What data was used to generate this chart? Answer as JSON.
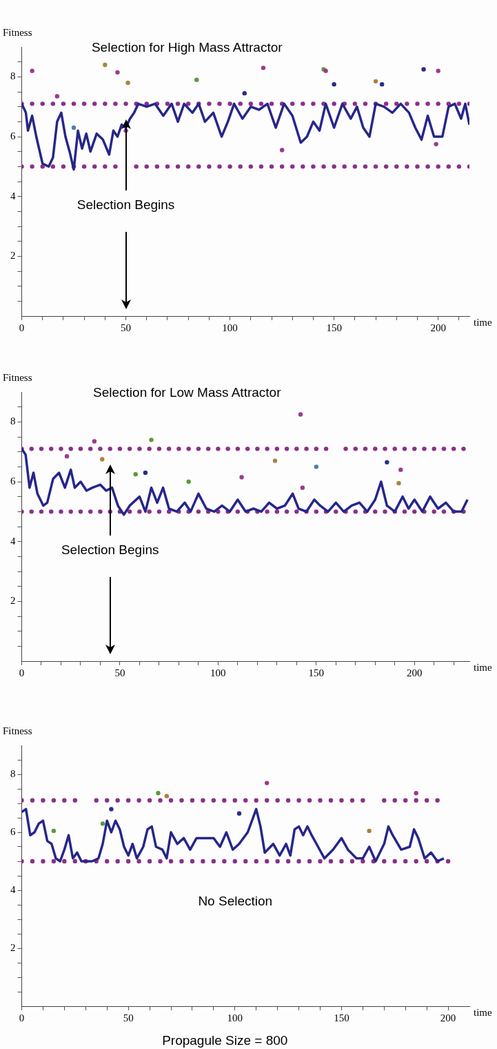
{
  "chart_data": [
    {
      "type": "line",
      "title": "Selection for High Mass Attractor",
      "xlabel": "time",
      "ylabel": "Fitness",
      "xlim": [
        0,
        215
      ],
      "ylim": [
        0,
        9
      ],
      "xticks": [
        0,
        {
          "value": 10,
          "label": null
        },
        {
          "value": 20,
          "label": null
        },
        {
          "value": 30,
          "label": null
        },
        {
          "value": 40,
          "label": null
        },
        50,
        {
          "value": 60,
          "label": null
        },
        {
          "value": 70,
          "label": null
        },
        {
          "value": 80,
          "label": null
        },
        {
          "value": 90,
          "label": null
        },
        100,
        {
          "value": 110,
          "label": null
        },
        {
          "value": 120,
          "label": null
        },
        {
          "value": 130,
          "label": null
        },
        {
          "value": 140,
          "label": null
        },
        150,
        {
          "value": 160,
          "label": null
        },
        {
          "value": 170,
          "label": null
        },
        {
          "value": 180,
          "label": null
        },
        {
          "value": 190,
          "label": null
        },
        200,
        {
          "value": 210,
          "label": null
        }
      ],
      "yticks": [
        {
          "value": 0.5,
          "label": null
        },
        {
          "value": 1,
          "label": null
        },
        {
          "value": 1.5,
          "label": null
        },
        2,
        {
          "value": 2.5,
          "label": null
        },
        {
          "value": 3,
          "label": null
        },
        {
          "value": 3.5,
          "label": null
        },
        4,
        {
          "value": 4.5,
          "label": null
        },
        {
          "value": 5,
          "label": null
        },
        {
          "value": 5.5,
          "label": null
        },
        6,
        {
          "value": 6.5,
          "label": null
        },
        {
          "value": 7,
          "label": null
        },
        {
          "value": 7.5,
          "label": null
        },
        8,
        {
          "value": 8.5,
          "label": null
        }
      ],
      "grid": false,
      "legend": false,
      "ref_lines": [
        {
          "axis": "x",
          "value": 50,
          "label": "Selection Begins"
        }
      ],
      "series": [
        {
          "color": "#26268a",
          "x": [
            0,
            2,
            3,
            5,
            7,
            10,
            13,
            15,
            17,
            19,
            21,
            23,
            25,
            27,
            29,
            31,
            33,
            36,
            39,
            42,
            44,
            46,
            48,
            50,
            52,
            54,
            56,
            60,
            64,
            68,
            72,
            75,
            78,
            82,
            85,
            88,
            92,
            96,
            99,
            102,
            106,
            110,
            114,
            118,
            122,
            126,
            130,
            134,
            137,
            140,
            143,
            146,
            150,
            154,
            158,
            161,
            164,
            167,
            170,
            174,
            178,
            182,
            186,
            189,
            192,
            195,
            198,
            202,
            205,
            208,
            211,
            213,
            215
          ],
          "values": [
            7.1,
            6.8,
            6.2,
            6.7,
            6.0,
            5.1,
            5.0,
            5.3,
            6.5,
            6.8,
            6.0,
            5.5,
            4.9,
            6.2,
            5.6,
            6.1,
            5.5,
            6.1,
            5.9,
            5.4,
            6.2,
            6.0,
            6.4,
            6.3,
            6.6,
            6.8,
            7.1,
            7.0,
            7.1,
            6.7,
            7.1,
            6.5,
            7.1,
            6.8,
            7.1,
            6.5,
            6.8,
            6.0,
            6.5,
            7.1,
            6.6,
            7.0,
            6.9,
            7.1,
            6.3,
            7.1,
            6.7,
            5.8,
            6.0,
            6.5,
            6.2,
            7.1,
            6.3,
            7.1,
            6.6,
            7.0,
            6.3,
            6.0,
            7.1,
            7.0,
            6.8,
            7.1,
            6.8,
            6.3,
            5.9,
            6.7,
            6.0,
            6.0,
            7.0,
            7.1,
            6.6,
            7.1,
            6.4
          ]
        },
        {
          "type": "scatter",
          "marker": "circle",
          "color": "#8b2f8b",
          "x": [
            0,
            5,
            10,
            15,
            20,
            25,
            30,
            35,
            40,
            45,
            50,
            55,
            60,
            65,
            70,
            75,
            80,
            85,
            90,
            95,
            100,
            105,
            110,
            115,
            120,
            125,
            130,
            135,
            140,
            145,
            150,
            155,
            160,
            165,
            170,
            175,
            180,
            185,
            190,
            195,
            200,
            205,
            210,
            215,
            0,
            5,
            10,
            15,
            20,
            25,
            30,
            35,
            40,
            45,
            55,
            60,
            65,
            70,
            75,
            80,
            85,
            90,
            95,
            100,
            105,
            110,
            115,
            120,
            125,
            130,
            135,
            140,
            145,
            150,
            155,
            160,
            165,
            170,
            175,
            180,
            185,
            190,
            195,
            200,
            205,
            210,
            215
          ],
          "values": [
            7.1,
            7.1,
            7.1,
            7.1,
            7.1,
            7.1,
            7.1,
            7.1,
            7.1,
            7.1,
            7.1,
            7.1,
            7.1,
            7.1,
            7.1,
            7.1,
            7.1,
            7.1,
            7.1,
            7.1,
            7.1,
            7.1,
            7.1,
            7.1,
            7.1,
            7.1,
            7.1,
            7.1,
            7.1,
            7.1,
            7.1,
            7.1,
            7.1,
            7.1,
            7.1,
            7.1,
            7.1,
            7.1,
            7.1,
            7.1,
            7.1,
            7.1,
            7.1,
            7.1,
            5,
            5,
            5,
            5,
            5,
            5,
            5,
            5,
            5,
            5,
            5,
            5,
            5,
            5,
            5,
            5,
            5,
            5,
            5,
            5,
            5,
            5,
            5,
            5,
            5,
            5,
            5,
            5,
            5,
            5,
            5,
            5,
            5,
            5,
            5,
            5,
            5,
            5,
            5,
            5,
            5,
            5,
            5
          ]
        },
        {
          "type": "scatter",
          "marker": "circle",
          "colors": [
            "#9c3a8c",
            "#a8823e",
            "#9c3a8c",
            "#a8823e",
            "#5a9a3a",
            "#9c3a8c",
            "#5a9a3a",
            "#9c3a8c",
            "#2b2b8a",
            "#a8823e",
            "#2b2b8a",
            "#2b2b8a",
            "#9c3a8c",
            "#2b2b8a",
            "#9c3a8c",
            "#9c3a8c",
            "#9c3a8c",
            "#4a7fb0",
            "#9c3a8c"
          ],
          "x": [
            5,
            40,
            46,
            51,
            84,
            116,
            145,
            146,
            150,
            170,
            173,
            193,
            200,
            107,
            50,
            125,
            199,
            25,
            17
          ],
          "values": [
            8.2,
            8.4,
            8.15,
            7.8,
            7.9,
            8.3,
            8.25,
            8.2,
            7.75,
            7.85,
            7.75,
            8.25,
            8.2,
            7.45,
            6.2,
            5.55,
            5.75,
            6.3,
            7.35
          ]
        }
      ]
    },
    {
      "type": "line",
      "title": "Selection for Low Mass Attractor",
      "xlabel": "time",
      "ylabel": "Fitness",
      "xlim": [
        0,
        228
      ],
      "ylim": [
        0,
        9
      ],
      "xticks": [
        0,
        {
          "value": 10,
          "label": null
        },
        {
          "value": 20,
          "label": null
        },
        {
          "value": 30,
          "label": null
        },
        {
          "value": 40,
          "label": null
        },
        50,
        {
          "value": 60,
          "label": null
        },
        {
          "value": 70,
          "label": null
        },
        {
          "value": 80,
          "label": null
        },
        {
          "value": 90,
          "label": null
        },
        100,
        {
          "value": 110,
          "label": null
        },
        {
          "value": 120,
          "label": null
        },
        {
          "value": 130,
          "label": null
        },
        {
          "value": 140,
          "label": null
        },
        150,
        {
          "value": 160,
          "label": null
        },
        {
          "value": 170,
          "label": null
        },
        {
          "value": 180,
          "label": null
        },
        {
          "value": 190,
          "label": null
        },
        200,
        {
          "value": 210,
          "label": null
        },
        {
          "value": 220,
          "label": null
        }
      ],
      "yticks": [
        {
          "value": 0.5,
          "label": null
        },
        {
          "value": 1,
          "label": null
        },
        {
          "value": 1.5,
          "label": null
        },
        2,
        {
          "value": 2.5,
          "label": null
        },
        {
          "value": 3,
          "label": null
        },
        {
          "value": 3.5,
          "label": null
        },
        4,
        {
          "value": 4.5,
          "label": null
        },
        {
          "value": 5,
          "label": null
        },
        {
          "value": 5.5,
          "label": null
        },
        6,
        {
          "value": 6.5,
          "label": null
        },
        {
          "value": 7,
          "label": null
        },
        {
          "value": 7.5,
          "label": null
        },
        8,
        {
          "value": 8.5,
          "label": null
        }
      ],
      "grid": false,
      "legend": false,
      "ref_lines": [
        {
          "axis": "x",
          "value": 45,
          "label": "Selection Begins"
        }
      ],
      "series": [
        {
          "color": "#26268a",
          "x": [
            0,
            2,
            4,
            6,
            8,
            11,
            13,
            16,
            19,
            22,
            25,
            27,
            30,
            33,
            36,
            40,
            43,
            46,
            49,
            52,
            55,
            60,
            63,
            66,
            69,
            72,
            75,
            79,
            83,
            86,
            90,
            94,
            98,
            102,
            106,
            110,
            114,
            118,
            122,
            126,
            130,
            134,
            138,
            141,
            145,
            149,
            152,
            156,
            160,
            164,
            168,
            172,
            176,
            180,
            183,
            186,
            190,
            194,
            197,
            200,
            204,
            208,
            212,
            216,
            220,
            224,
            227
          ],
          "values": [
            7.1,
            6.9,
            5.8,
            6.3,
            5.6,
            5.2,
            5.3,
            6.1,
            6.3,
            5.8,
            6.4,
            5.8,
            6.0,
            5.7,
            5.8,
            5.9,
            5.7,
            5.8,
            5.2,
            4.9,
            5.2,
            5.5,
            5.0,
            5.8,
            5.3,
            5.8,
            5.1,
            5.0,
            5.3,
            5.0,
            5.6,
            5.1,
            5.0,
            5.2,
            5.0,
            5.4,
            5.0,
            5.1,
            5.0,
            5.3,
            5.1,
            5.2,
            5.6,
            5.1,
            5.0,
            5.4,
            5.2,
            5.0,
            5.3,
            5.0,
            5.2,
            5.3,
            5.0,
            5.4,
            6.0,
            5.2,
            5.0,
            5.5,
            5.1,
            5.4,
            5.0,
            5.5,
            5.1,
            5.3,
            5.0,
            5.0,
            5.4
          ]
        },
        {
          "type": "scatter",
          "marker": "circle",
          "color": "#8b2f8b",
          "x": [
            0,
            5,
            10,
            15,
            20,
            25,
            30,
            35,
            40,
            45,
            50,
            55,
            60,
            65,
            70,
            75,
            80,
            85,
            90,
            95,
            100,
            105,
            110,
            115,
            120,
            125,
            130,
            135,
            140,
            145,
            150,
            155,
            165,
            170,
            175,
            180,
            185,
            190,
            195,
            200,
            205,
            210,
            215,
            220,
            225,
            0,
            5,
            10,
            15,
            20,
            25,
            30,
            35,
            40,
            45,
            50,
            55,
            60,
            65,
            70,
            75,
            80,
            85,
            90,
            95,
            100,
            105,
            110,
            115,
            120,
            125,
            130,
            135,
            140,
            145,
            150,
            155,
            160,
            165,
            170,
            175,
            180,
            185,
            190,
            195,
            200,
            205,
            210,
            215,
            220,
            225
          ],
          "values": [
            7.1,
            7.1,
            7.1,
            7.1,
            7.1,
            7.1,
            7.1,
            7.1,
            7.1,
            7.1,
            7.1,
            7.1,
            7.1,
            7.1,
            7.1,
            7.1,
            7.1,
            7.1,
            7.1,
            7.1,
            7.1,
            7.1,
            7.1,
            7.1,
            7.1,
            7.1,
            7.1,
            7.1,
            7.1,
            7.1,
            7.1,
            7.1,
            7.1,
            7.1,
            7.1,
            7.1,
            7.1,
            7.1,
            7.1,
            7.1,
            7.1,
            7.1,
            7.1,
            7.1,
            7.1,
            5,
            5,
            5,
            5,
            5,
            5,
            5,
            5,
            5,
            5,
            5,
            5,
            5,
            5,
            5,
            5,
            5,
            5,
            5,
            5,
            5,
            5,
            5,
            5,
            5,
            5,
            5,
            5,
            5,
            5,
            5,
            5,
            5,
            5,
            5,
            5,
            5,
            5,
            5,
            5,
            5,
            5,
            5,
            5,
            5,
            5
          ]
        },
        {
          "type": "scatter",
          "marker": "circle",
          "colors": [
            "#9c3a8c",
            "#9c3a8c",
            "#5a9a3a",
            "#a8823e",
            "#9c3a8c",
            "#5a9a3a",
            "#2b2b8a",
            "#5a9a3a",
            "#9c3a8c",
            "#a8823e",
            "#9c3a8c",
            "#4a7fb0",
            "#2b2b8a",
            "#9c3a8c",
            "#a8823e"
          ],
          "x": [
            142,
            37,
            66,
            41,
            23,
            58,
            63,
            85,
            112,
            129,
            143,
            150,
            186,
            193,
            192
          ],
          "values": [
            8.25,
            7.35,
            7.4,
            6.75,
            6.85,
            6.25,
            6.3,
            6.0,
            6.15,
            6.7,
            5.8,
            6.5,
            6.65,
            6.4,
            5.95
          ]
        }
      ]
    },
    {
      "type": "line",
      "xlabel": "time",
      "ylabel": "Fitness",
      "subtitle": "Propagule Size = 800",
      "xlim": [
        0,
        210
      ],
      "ylim": [
        0,
        9
      ],
      "xticks": [
        0,
        {
          "value": 10,
          "label": null
        },
        {
          "value": 20,
          "label": null
        },
        {
          "value": 30,
          "label": null
        },
        {
          "value": 40,
          "label": null
        },
        50,
        {
          "value": 60,
          "label": null
        },
        {
          "value": 70,
          "label": null
        },
        {
          "value": 80,
          "label": null
        },
        {
          "value": 90,
          "label": null
        },
        100,
        {
          "value": 110,
          "label": null
        },
        {
          "value": 120,
          "label": null
        },
        {
          "value": 130,
          "label": null
        },
        {
          "value": 140,
          "label": null
        },
        150,
        {
          "value": 160,
          "label": null
        },
        {
          "value": 170,
          "label": null
        },
        {
          "value": 180,
          "label": null
        },
        {
          "value": 190,
          "label": null
        },
        200
      ],
      "yticks": [
        {
          "value": 0.5,
          "label": null
        },
        {
          "value": 1,
          "label": null
        },
        {
          "value": 1.5,
          "label": null
        },
        2,
        {
          "value": 2.5,
          "label": null
        },
        {
          "value": 3,
          "label": null
        },
        {
          "value": 3.5,
          "label": null
        },
        4,
        {
          "value": 4.5,
          "label": null
        },
        {
          "value": 5,
          "label": null
        },
        {
          "value": 5.5,
          "label": null
        },
        6,
        {
          "value": 6.5,
          "label": null
        },
        {
          "value": 7,
          "label": null
        },
        {
          "value": 7.5,
          "label": null
        },
        8,
        {
          "value": 8.5,
          "label": null
        }
      ],
      "grid": false,
      "legend": false,
      "annotations": [
        "No Selection"
      ],
      "series": [
        {
          "color": "#26268a",
          "x": [
            0,
            2,
            4,
            6,
            8,
            10,
            12,
            14,
            16,
            18,
            20,
            22,
            24,
            26,
            28,
            33,
            36,
            38,
            40,
            42,
            44,
            46,
            48,
            50,
            52,
            54,
            57,
            59,
            61,
            63,
            66,
            68,
            70,
            73,
            76,
            79,
            82,
            85,
            90,
            93,
            96,
            99,
            102,
            106,
            110,
            112,
            114,
            118,
            121,
            124,
            126,
            128,
            130,
            132,
            134,
            136,
            139,
            142,
            146,
            150,
            153,
            157,
            160,
            163,
            166,
            170,
            172,
            174,
            178,
            182,
            184,
            186,
            189,
            192,
            195,
            198
          ],
          "values": [
            6.7,
            6.8,
            5.9,
            6.0,
            6.3,
            6.4,
            5.7,
            5.6,
            5.1,
            5.0,
            5.4,
            5.9,
            5.1,
            5.3,
            5.0,
            5.0,
            5.1,
            5.6,
            6.4,
            6.0,
            6.4,
            6.1,
            5.5,
            5.2,
            5.6,
            5.1,
            5.5,
            6.1,
            6.2,
            5.5,
            5.4,
            5.1,
            6.0,
            5.6,
            5.8,
            5.4,
            5.8,
            5.8,
            5.8,
            5.5,
            6.0,
            5.4,
            5.6,
            6.0,
            6.8,
            6.2,
            5.3,
            5.6,
            5.2,
            5.6,
            5.2,
            6.1,
            6.2,
            5.9,
            6.2,
            5.9,
            5.5,
            5.1,
            5.4,
            5.8,
            5.4,
            5.1,
            5.1,
            5.5,
            5.0,
            5.6,
            6.2,
            5.9,
            5.4,
            5.5,
            6.1,
            5.8,
            5.1,
            5.3,
            5.0,
            5.1
          ]
        },
        {
          "type": "scatter",
          "marker": "circle",
          "color": "#8b2f8b",
          "x": [
            0,
            5,
            10,
            15,
            20,
            25,
            35,
            40,
            45,
            50,
            55,
            60,
            65,
            70,
            75,
            80,
            85,
            90,
            95,
            100,
            105,
            110,
            115,
            120,
            125,
            130,
            135,
            140,
            145,
            150,
            155,
            160,
            170,
            175,
            180,
            185,
            190,
            195,
            0,
            5,
            10,
            15,
            20,
            25,
            30,
            35,
            40,
            45,
            50,
            55,
            60,
            65,
            70,
            75,
            80,
            85,
            90,
            95,
            100,
            105,
            110,
            115,
            120,
            125,
            130,
            135,
            140,
            145,
            150,
            155,
            160,
            165,
            170,
            175,
            180,
            185,
            190,
            195,
            200
          ],
          "values": [
            7.1,
            7.1,
            7.1,
            7.1,
            7.1,
            7.1,
            7.1,
            7.1,
            7.1,
            7.1,
            7.1,
            7.1,
            7.1,
            7.1,
            7.1,
            7.1,
            7.1,
            7.1,
            7.1,
            7.1,
            7.1,
            7.1,
            7.1,
            7.1,
            7.1,
            7.1,
            7.1,
            7.1,
            7.1,
            7.1,
            7.1,
            7.1,
            7.1,
            7.1,
            7.1,
            7.1,
            7.1,
            7.1,
            5,
            5,
            5,
            5,
            5,
            5,
            5,
            5,
            5,
            5,
            5,
            5,
            5,
            5,
            5,
            5,
            5,
            5,
            5,
            5,
            5,
            5,
            5,
            5,
            5,
            5,
            5,
            5,
            5,
            5,
            5,
            5,
            5,
            5,
            5,
            5,
            5,
            5,
            5,
            5,
            5
          ]
        },
        {
          "type": "scatter",
          "marker": "circle",
          "colors": [
            "#9c3a8c",
            "#5a9a3a",
            "#2b2b8a",
            "#2b2b8a",
            "#5a9a3a",
            "#5a9a3a",
            "#a8823e",
            "#9c3a8c",
            "#a8823e"
          ],
          "x": [
            115,
            64,
            42,
            102,
            38,
            15,
            163,
            185,
            68
          ],
          "values": [
            7.7,
            7.35,
            6.8,
            6.65,
            6.3,
            6.05,
            6.05,
            7.35,
            7.25
          ]
        }
      ]
    }
  ]
}
